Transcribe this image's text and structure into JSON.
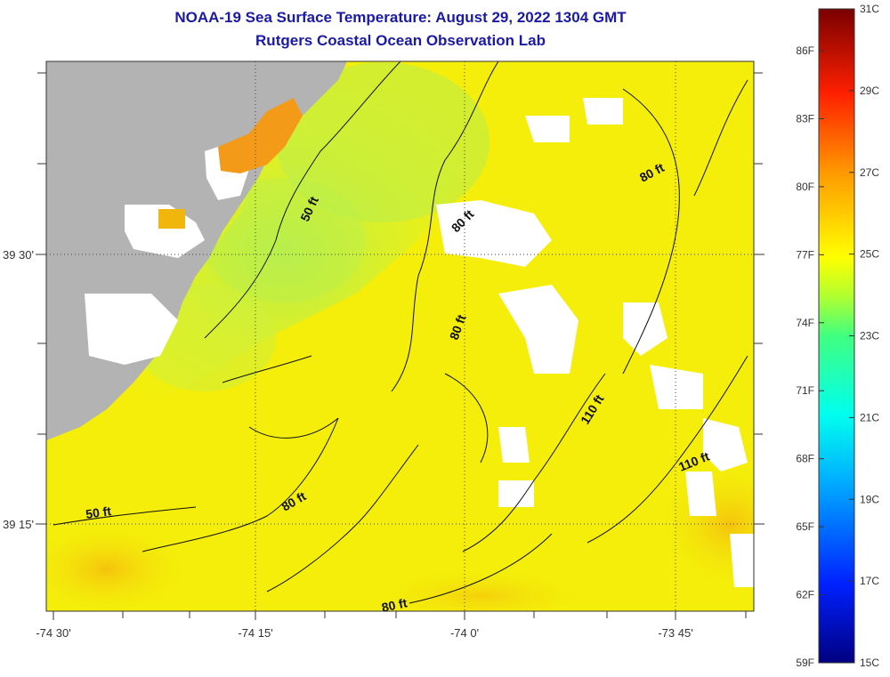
{
  "title": {
    "line1": "NOAA-19 Sea Surface Temperature:  August 29, 2022 1304 GMT",
    "line2": "Rutgers Coastal Ocean Observation Lab"
  },
  "axes": {
    "x_ticks": [
      "-74 30'",
      "-74 15'",
      "-74 0'",
      "-73 45'"
    ],
    "y_ticks": [
      "39 30'",
      "39 15'"
    ]
  },
  "contour_labels": [
    "50 ft",
    "50 ft",
    "80 ft",
    "80 ft",
    "80 ft",
    "80 ft",
    "80 ft",
    "110 ft",
    "110 ft"
  ],
  "colorbar": {
    "fahrenheit": [
      "86F",
      "83F",
      "80F",
      "77F",
      "74F",
      "71F",
      "68F",
      "65F",
      "62F",
      "59F"
    ],
    "celsius": [
      "31C",
      "29C",
      "27C",
      "25C",
      "23C",
      "21C",
      "19C",
      "17C",
      "15C"
    ]
  },
  "colors": {
    "land": "#b3b3b3",
    "cloud": "#ffffff",
    "title": "#1a1aa6",
    "warm": "#f7c10a",
    "mid": "#f4f00a",
    "cool": "#b9f04a"
  }
}
